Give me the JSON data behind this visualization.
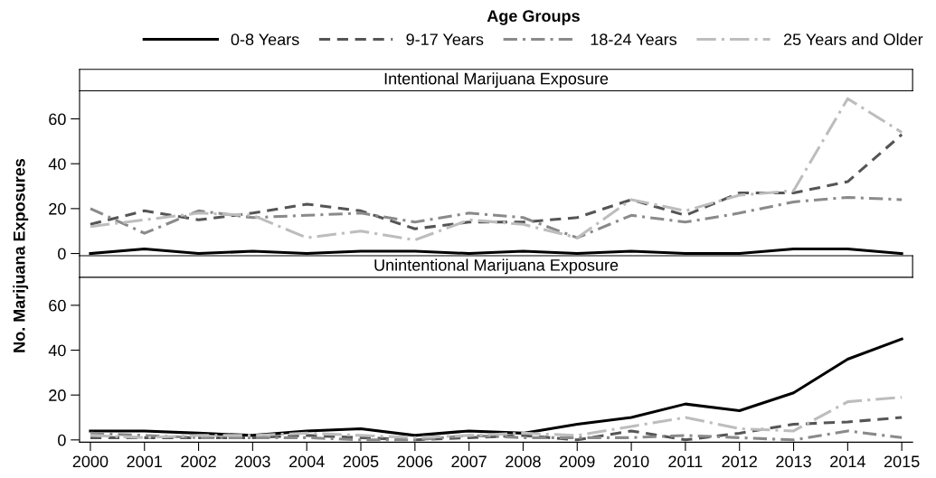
{
  "chart_data": [
    {
      "type": "line",
      "title": "Intentional Marijuana Exposure",
      "ylabel": "No. Marijuana Exposures",
      "legend_title": "Age Groups",
      "legend": "top",
      "tick_labels": "y",
      "grid": false,
      "x": [
        2000,
        2001,
        2002,
        2003,
        2004,
        2005,
        2006,
        2007,
        2008,
        2009,
        2010,
        2011,
        2012,
        2013,
        2014,
        2015
      ],
      "xlim": [
        1999.8,
        2015.2
      ],
      "xticks": [
        2000,
        2001,
        2002,
        2003,
        2004,
        2005,
        2006,
        2007,
        2008,
        2009,
        2010,
        2011,
        2012,
        2013,
        2014,
        2015
      ],
      "ylim": [
        -1,
        72.5
      ],
      "yticks": [
        0,
        20,
        40,
        60
      ],
      "series": [
        {
          "name": "0-8 Years",
          "color": "#000000",
          "line_style": "solid",
          "values": [
            0,
            2,
            0,
            1,
            0,
            1,
            1,
            0,
            1,
            0,
            1,
            0,
            0,
            2,
            2,
            0
          ]
        },
        {
          "name": "9-17 Years",
          "color": "#555555",
          "line_style": "dashed",
          "values": [
            13,
            19,
            15,
            18,
            22,
            19,
            11,
            14,
            14,
            16,
            24,
            17,
            27,
            27,
            32,
            53
          ]
        },
        {
          "name": "18-24 Years",
          "color": "#8a8a8a",
          "line_style": "dashdot",
          "values": [
            20,
            9,
            19,
            16,
            17,
            18,
            14,
            18,
            16,
            7,
            17,
            14,
            18,
            23,
            25,
            24
          ]
        },
        {
          "name": "25 Years and Older",
          "color": "#bdbdbd",
          "line_style": "dashdot",
          "values": [
            12,
            15,
            18,
            17,
            7,
            10,
            6,
            15,
            13,
            7,
            24,
            19,
            26,
            28,
            69,
            54
          ]
        }
      ]
    },
    {
      "type": "line",
      "title": "Unintentional Marijuana Exposure",
      "grid": false,
      "x": [
        2000,
        2001,
        2002,
        2003,
        2004,
        2005,
        2006,
        2007,
        2008,
        2009,
        2010,
        2011,
        2012,
        2013,
        2014,
        2015
      ],
      "xlim": [
        1999.8,
        2015.2
      ],
      "xticks": [
        2000,
        2001,
        2002,
        2003,
        2004,
        2005,
        2006,
        2007,
        2008,
        2009,
        2010,
        2011,
        2012,
        2013,
        2014,
        2015
      ],
      "ylim": [
        -1,
        72.5
      ],
      "yticks": [
        0,
        20,
        40,
        60
      ],
      "series": [
        {
          "color": "#000000",
          "line_style": "solid",
          "values": [
            4,
            4,
            3,
            2,
            4,
            5,
            2,
            4,
            3,
            7,
            10,
            16,
            13,
            21,
            36,
            45
          ]
        },
        {
          "color": "#555555",
          "line_style": "dashed",
          "values": [
            1,
            1,
            1,
            1,
            2,
            1,
            0,
            1,
            2,
            0,
            4,
            0,
            3,
            7,
            8,
            10
          ]
        },
        {
          "color": "#8a8a8a",
          "line_style": "dashdot",
          "values": [
            3,
            2,
            1,
            1,
            1,
            0,
            0,
            2,
            1,
            1,
            1,
            2,
            1,
            0,
            4,
            1
          ]
        },
        {
          "color": "#bdbdbd",
          "line_style": "dashdot",
          "values": [
            2,
            1,
            2,
            2,
            3,
            2,
            1,
            2,
            3,
            2,
            6,
            10,
            5,
            4,
            17,
            19
          ]
        }
      ]
    }
  ]
}
